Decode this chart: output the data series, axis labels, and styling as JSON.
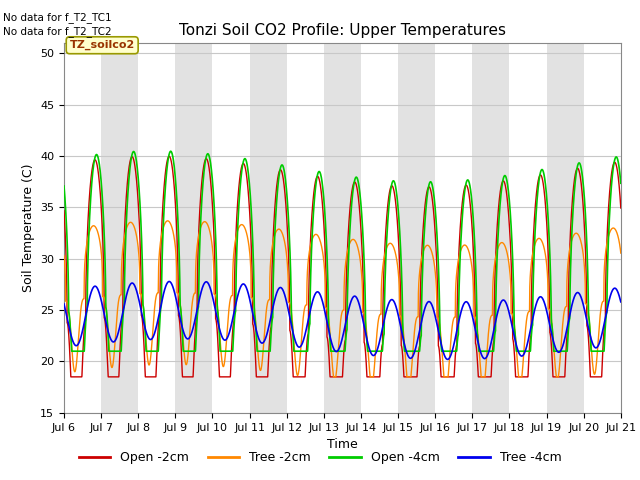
{
  "title": "Tonzi Soil CO2 Profile: Upper Temperatures",
  "ylabel": "Soil Temperature (C)",
  "xlabel": "Time",
  "ylim": [
    15,
    51
  ],
  "yticks": [
    15,
    20,
    25,
    30,
    35,
    40,
    45,
    50
  ],
  "no_data_text1": "No data for f_T2_TC1",
  "no_data_text2": "No data for f_T2_TC2",
  "station_label": "TZ_soilco2",
  "legend_labels": [
    "Open -2cm",
    "Tree -2cm",
    "Open -4cm",
    "Tree -4cm"
  ],
  "line_colors": [
    "#cc0000",
    "#ff8800",
    "#00cc00",
    "#0000ee"
  ],
  "background_color": "#ffffff",
  "plot_bg_light": "#ffffff",
  "plot_bg_dark": "#e0e0e0",
  "n_days": 15,
  "start_day": 6,
  "points_per_day": 288
}
